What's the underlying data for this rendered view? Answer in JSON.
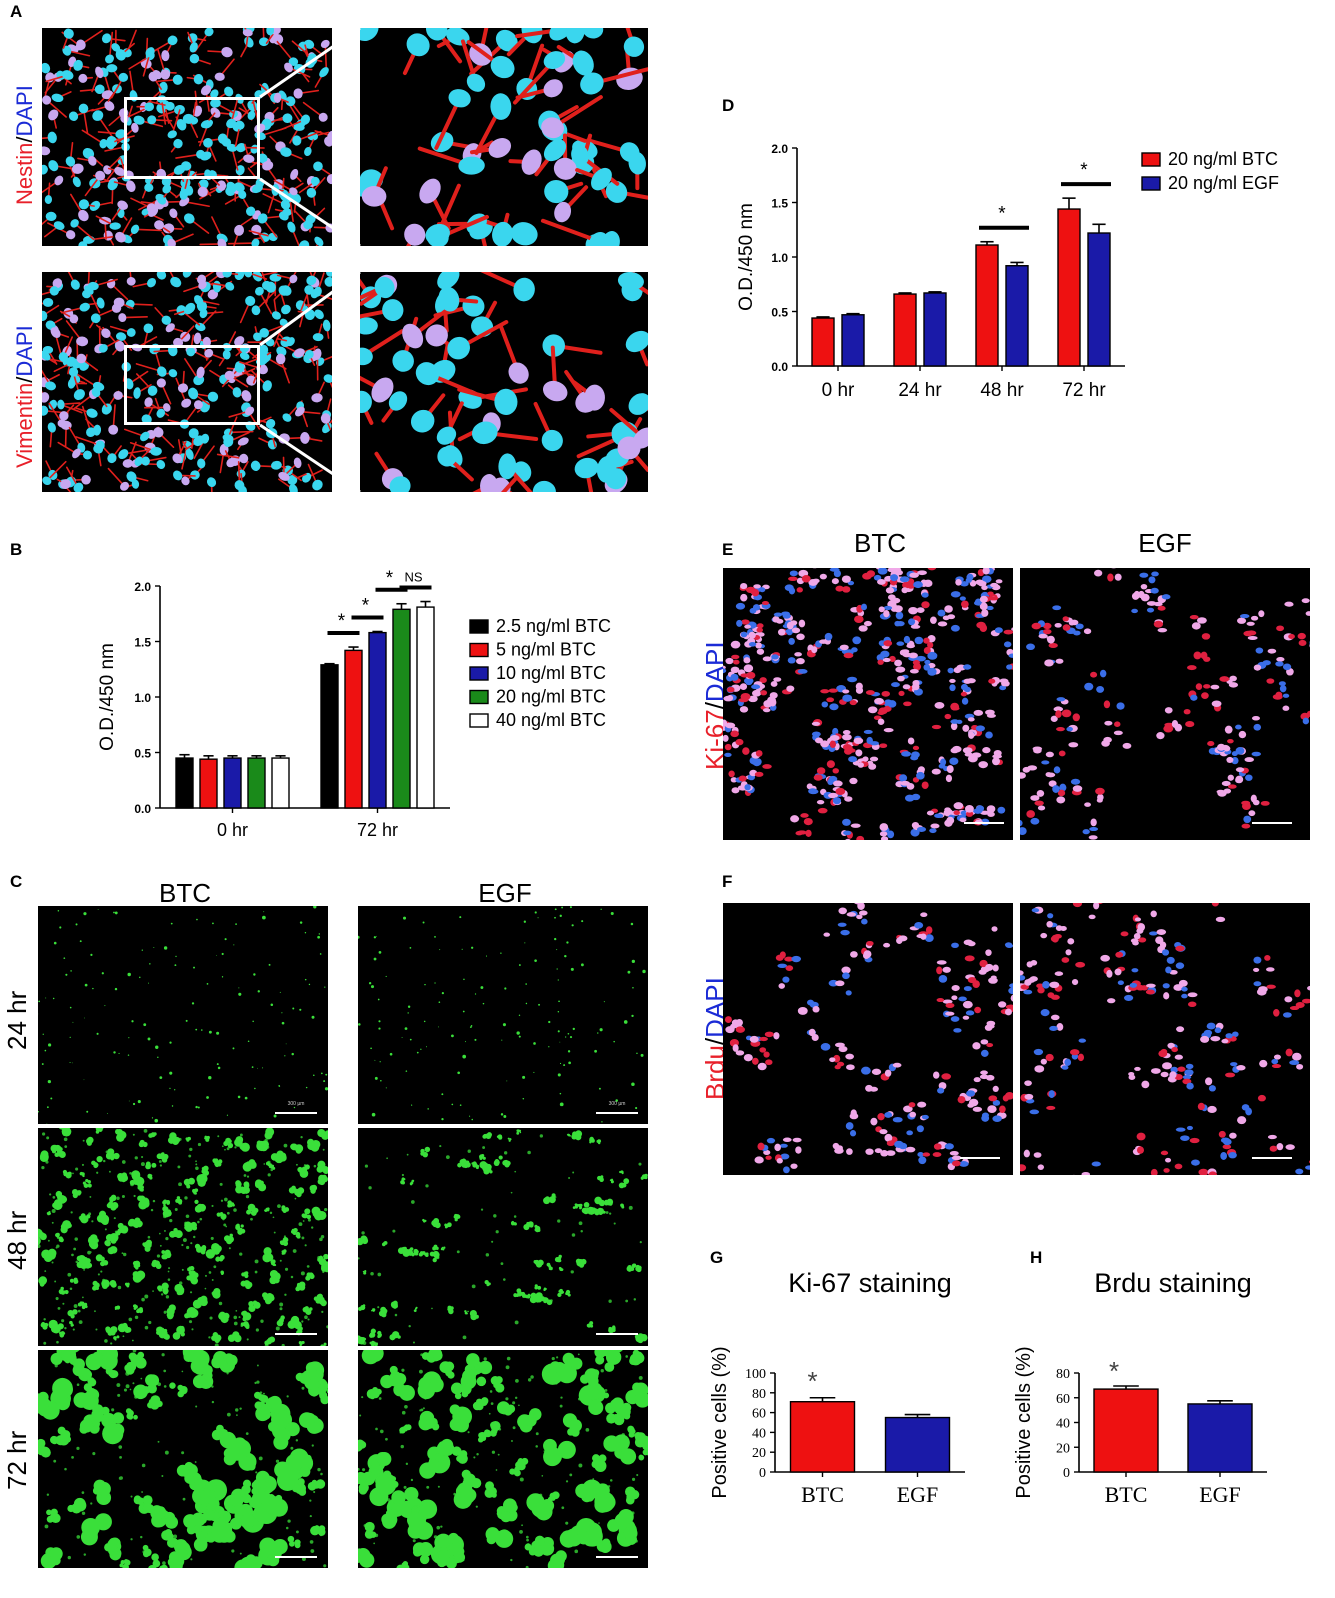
{
  "panels": {
    "A": {
      "label": "A",
      "rows": [
        {
          "marker": "Nestin",
          "stain": "DAPI",
          "sep": "/"
        },
        {
          "marker": "Vimentin",
          "stain": "DAPI",
          "sep": "/"
        }
      ],
      "colors": {
        "marker": "#e8202a",
        "stain": "#1b2bd6"
      }
    },
    "B": {
      "label": "B"
    },
    "C": {
      "label": "C",
      "columns": [
        "BTC",
        "EGF"
      ],
      "rows": [
        "24 hr",
        "48 hr",
        "72 hr"
      ],
      "scale_text": "300 µm"
    },
    "D": {
      "label": "D"
    },
    "E": {
      "label": "E",
      "columns": [
        "BTC",
        "EGF"
      ],
      "marker": "Ki-67",
      "stain": "DAPI",
      "sep": "/"
    },
    "F": {
      "label": "F",
      "marker": "Brdu",
      "stain": "DAPI",
      "sep": "/"
    },
    "G": {
      "label": "G"
    },
    "H": {
      "label": "H"
    }
  },
  "chart_data": [
    {
      "id": "B",
      "type": "bar",
      "ylabel": "O.D./450 nm",
      "ylim": [
        0,
        2.0
      ],
      "yticks": [
        "0.0",
        "0.5",
        "1.0",
        "1.5",
        "2.0"
      ],
      "ytick_values": [
        0,
        0.5,
        1.0,
        1.5,
        2.0
      ],
      "categories": [
        "0 hr",
        "72 hr"
      ],
      "series": [
        {
          "name": "2.5 ng/ml BTC",
          "color": "#000000",
          "values": [
            0.45,
            1.29
          ],
          "errors": [
            0.03,
            0.01
          ]
        },
        {
          "name": "  5 ng/ml BTC",
          "color": "#ee1111",
          "values": [
            0.44,
            1.42
          ],
          "errors": [
            0.03,
            0.03
          ]
        },
        {
          "name": "10 ng/ml BTC",
          "color": "#1a1aa8",
          "values": [
            0.45,
            1.58
          ],
          "errors": [
            0.02,
            0.01
          ]
        },
        {
          "name": "20 ng/ml BTC",
          "color": "#1a8a1a",
          "values": [
            0.45,
            1.79
          ],
          "errors": [
            0.02,
            0.05
          ]
        },
        {
          "name": "40 ng/ml BTC",
          "color": "#ffffff",
          "values": [
            0.45,
            1.81
          ],
          "errors": [
            0.02,
            0.05
          ]
        }
      ],
      "annotations": [
        "*",
        "*",
        "*",
        "NS"
      ],
      "legend": "right"
    },
    {
      "id": "D",
      "type": "bar",
      "ylabel": "O.D./450 nm",
      "ylim": [
        0,
        2.0
      ],
      "yticks": [
        "0.0",
        "0.5",
        "1.0",
        "1.5",
        "2.0"
      ],
      "ytick_values": [
        0,
        0.5,
        1.0,
        1.5,
        2.0
      ],
      "categories": [
        "0 hr",
        "24 hr",
        "48 hr",
        "72 hr"
      ],
      "series": [
        {
          "name": "20 ng/ml BTC",
          "color": "#ee1111",
          "values": [
            0.44,
            0.66,
            1.11,
            1.44
          ],
          "errors": [
            0.01,
            0.01,
            0.03,
            0.1
          ]
        },
        {
          "name": "20 ng/ml EGF",
          "color": "#1a1aa8",
          "values": [
            0.47,
            0.67,
            0.92,
            1.22
          ],
          "errors": [
            0.01,
            0.01,
            0.03,
            0.08
          ]
        }
      ],
      "annotations": [
        "*",
        "*"
      ],
      "legend": "top-right"
    },
    {
      "id": "G",
      "type": "bar",
      "title": "Ki-67 staining",
      "ylabel": "Positive cells (%)",
      "ylim": [
        0,
        100
      ],
      "yticks": [
        "0",
        "20",
        "40",
        "60",
        "80",
        "100"
      ],
      "ytick_values": [
        0,
        20,
        40,
        60,
        80,
        100
      ],
      "categories": [
        "BTC",
        "EGF"
      ],
      "values": [
        71,
        55
      ],
      "errors": [
        4,
        3
      ],
      "colors": [
        "#ee1111",
        "#1a1aa8"
      ],
      "annotations": [
        "*"
      ]
    },
    {
      "id": "H",
      "type": "bar",
      "title": "Brdu staining",
      "ylabel": "Positive cells (%)",
      "ylim": [
        0,
        80
      ],
      "yticks": [
        "0",
        "20",
        "40",
        "60",
        "80"
      ],
      "ytick_values": [
        0,
        20,
        40,
        60,
        80
      ],
      "categories": [
        "BTC",
        "EGF"
      ],
      "values": [
        67,
        55
      ],
      "errors": [
        2.5,
        2.5
      ],
      "colors": [
        "#ee1111",
        "#1a1aa8"
      ],
      "annotations": [
        "*"
      ]
    }
  ]
}
